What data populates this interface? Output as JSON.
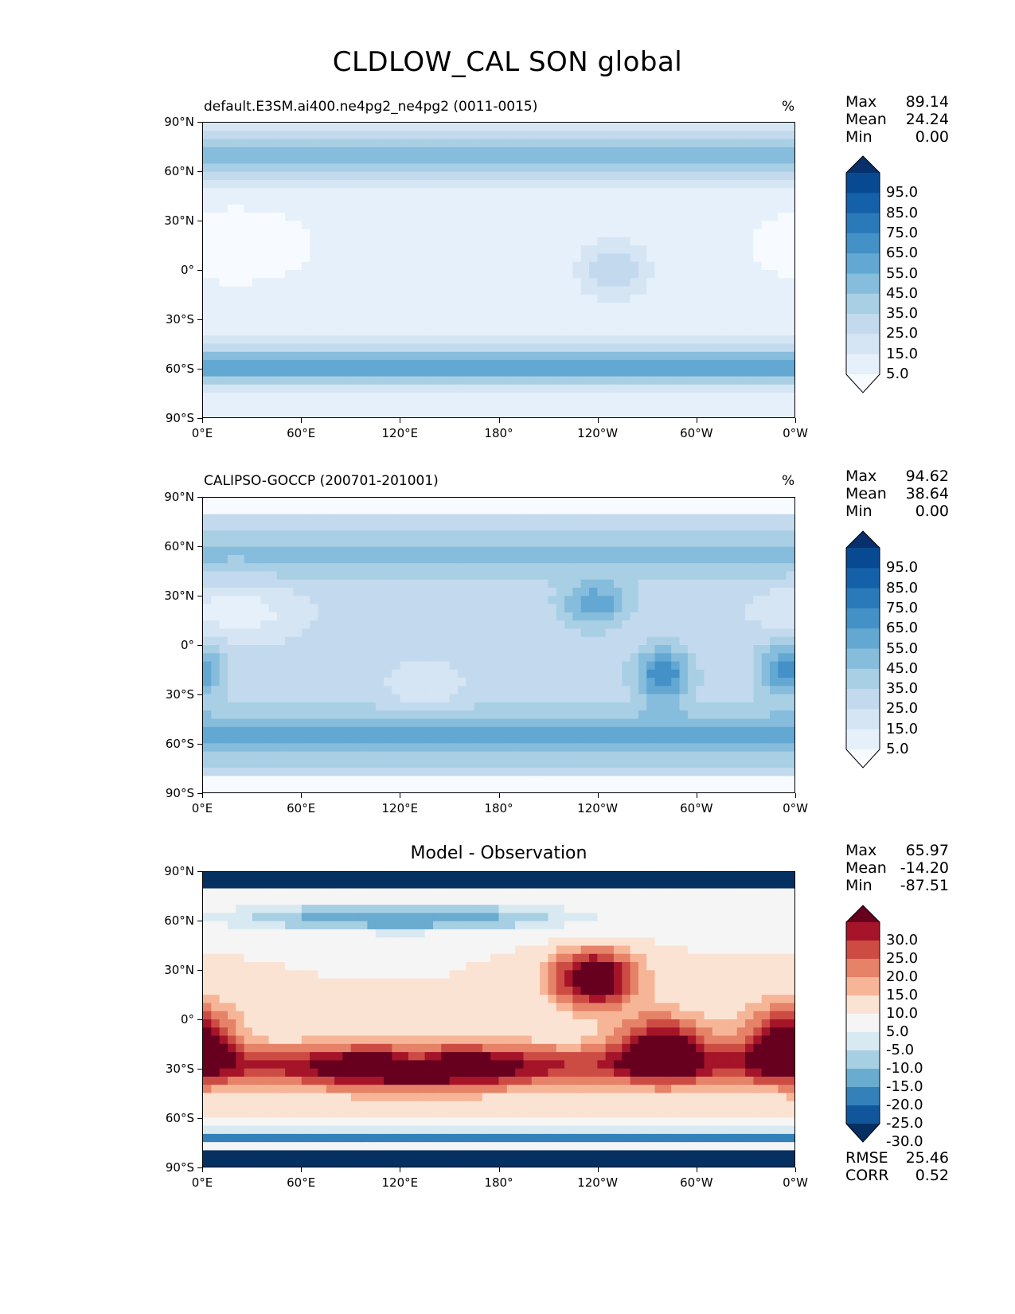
{
  "title": "CLDLOW_CAL SON global",
  "panels": [
    {
      "id": "model",
      "title_left": "default.E3SM.ai400.ne4pg2_ne4pg2 (0011-0015)",
      "title_right": "%",
      "stats": [
        {
          "label": "Max",
          "value": "89.14"
        },
        {
          "label": "Mean",
          "value": "24.24"
        },
        {
          "label": "Min",
          "value": "0.00"
        }
      ],
      "colorbar_labels": [
        "95.0",
        "85.0",
        "75.0",
        "65.0",
        "55.0",
        "45.0",
        "35.0",
        "25.0",
        "15.0",
        "5.0"
      ]
    },
    {
      "id": "obs",
      "title_left": "CALIPSO-GOCCP (200701-201001)",
      "title_right": "%",
      "stats": [
        {
          "label": "Max",
          "value": "94.62"
        },
        {
          "label": "Mean",
          "value": "38.64"
        },
        {
          "label": "Min",
          "value": "0.00"
        }
      ],
      "colorbar_labels": [
        "95.0",
        "85.0",
        "75.0",
        "65.0",
        "55.0",
        "45.0",
        "35.0",
        "25.0",
        "15.0",
        "5.0"
      ]
    },
    {
      "id": "diff",
      "title_center": "Model - Observation",
      "stats": [
        {
          "label": "Max",
          "value": "65.97"
        },
        {
          "label": "Mean",
          "value": "-14.20"
        },
        {
          "label": "Min",
          "value": "-87.51"
        }
      ],
      "colorbar_labels": [
        "30.0",
        "25.0",
        "20.0",
        "15.0",
        "10.0",
        "5.0",
        "-5.0",
        "-10.0",
        "-15.0",
        "-20.0",
        "-25.0",
        "-30.0"
      ],
      "bottom_stats": [
        {
          "label": "RMSE",
          "value": "25.46"
        },
        {
          "label": "CORR",
          "value": "0.52"
        }
      ]
    }
  ],
  "lat_ticks": [
    "90°N",
    "60°N",
    "30°N",
    "0°",
    "30°S",
    "60°S",
    "90°S"
  ],
  "lon_ticks": [
    "0°E",
    "60°E",
    "120°E",
    "180°",
    "120°W",
    "60°W",
    "0°W"
  ],
  "colors": {
    "blues": [
      "#f7fbff",
      "#e6f0fa",
      "#d5e5f4",
      "#c3daee",
      "#a9cfe5",
      "#86bcdc",
      "#62a8d3",
      "#4391c6",
      "#2a7ab9",
      "#1561a9",
      "#084a91",
      "#08306b"
    ],
    "rdbu": [
      "#67001f",
      "#a51429",
      "#cc4c44",
      "#e58267",
      "#f6b596",
      "#fbe3d4",
      "#f5f5f5",
      "#d9e9f1",
      "#a6cfe4",
      "#6aabd0",
      "#3480b9",
      "#11569b",
      "#053061"
    ]
  }
}
